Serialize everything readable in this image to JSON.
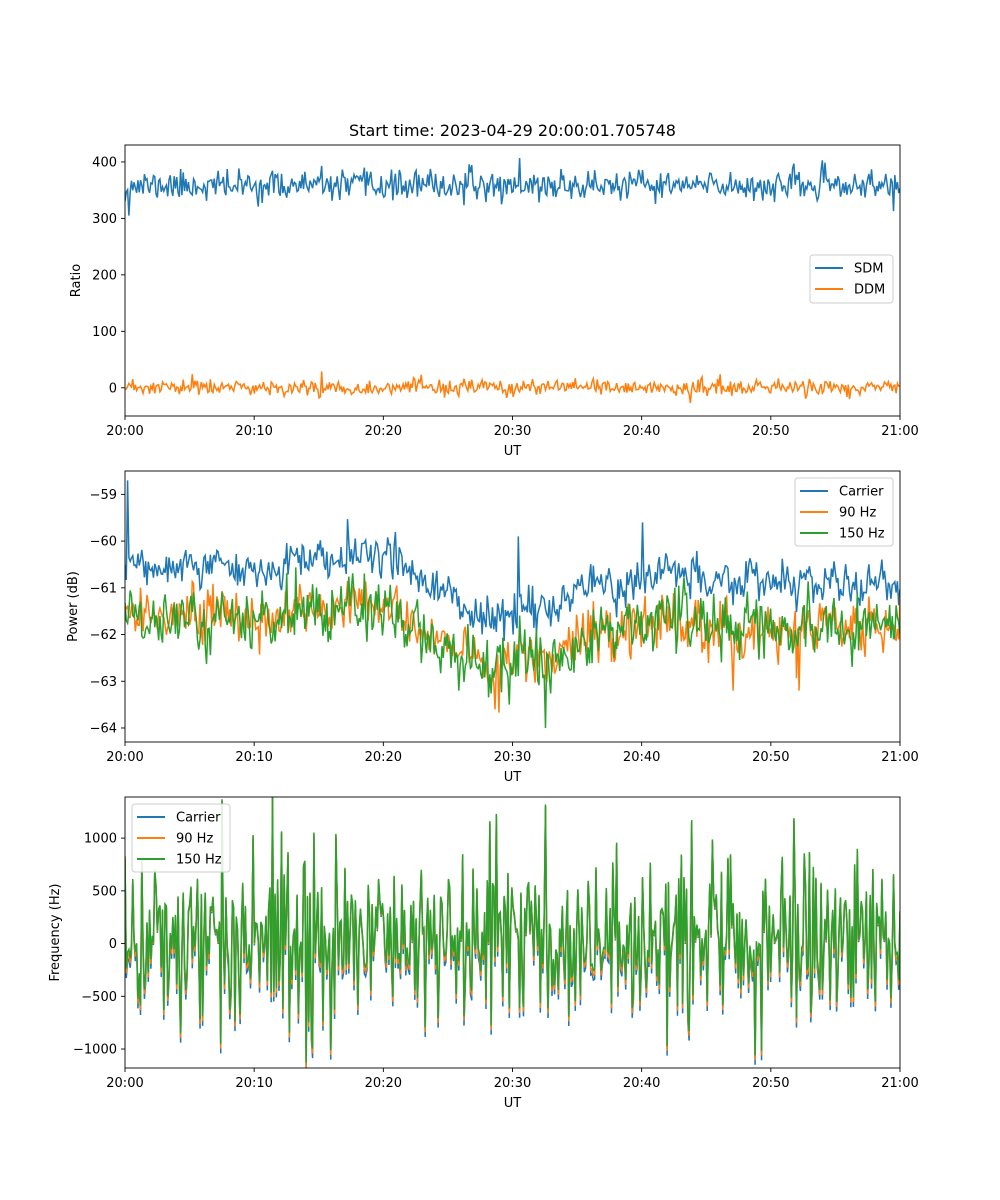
{
  "chart_data": [
    {
      "type": "line",
      "title": "Start time: 2023-04-29 20:00:01.705748",
      "xlabel": "UT",
      "ylabel": "Ratio",
      "x_range": [
        "20:00",
        "21:00"
      ],
      "xticks": [
        "20:00",
        "20:10",
        "20:20",
        "20:30",
        "20:40",
        "20:50",
        "21:00"
      ],
      "ylim": [
        -50,
        430
      ],
      "yticks": [
        0,
        100,
        200,
        300,
        400
      ],
      "ytick_labels": [
        "0",
        "100",
        "200",
        "300",
        "400"
      ],
      "legend_position": "center-right",
      "grid": false,
      "series": [
        {
          "name": "SDM",
          "color": "#1f77b4",
          "mean": 358,
          "noise": 13,
          "seed": 11,
          "start": 320,
          "events": [
            [
              0.005,
              305
            ],
            [
              0.51,
              407
            ],
            [
              0.0,
              330
            ]
          ]
        },
        {
          "name": "DDM",
          "color": "#ff7f0e",
          "mean": 0,
          "noise": 7,
          "seed": 23,
          "start": -3,
          "events": [
            [
              0.253,
              29
            ],
            [
              0.087,
              24
            ],
            [
              0.73,
              -27
            ]
          ]
        }
      ]
    },
    {
      "type": "line",
      "title": "",
      "xlabel": "UT",
      "ylabel": "Power (dB)",
      "x_range": [
        "20:00",
        "21:00"
      ],
      "xticks": [
        "20:00",
        "20:10",
        "20:20",
        "20:30",
        "20:40",
        "20:50",
        "21:00"
      ],
      "ylim": [
        -64.3,
        -58.5
      ],
      "yticks": [
        -64,
        -63,
        -62,
        -61,
        -60,
        -59
      ],
      "ytick_labels": [
        "−64",
        "−63",
        "−62",
        "−61",
        "−60",
        "−59"
      ],
      "legend_position": "top-right",
      "grid": false,
      "series": [
        {
          "name": "Carrier",
          "color": "#1f77b4",
          "noise": 0.18,
          "seed": 5,
          "baseline": [
            [
              0,
              -60.6
            ],
            [
              0.1,
              -60.6
            ],
            [
              0.2,
              -60.5
            ],
            [
              0.3,
              -60.3
            ],
            [
              0.35,
              -60.4
            ],
            [
              0.4,
              -61.0
            ],
            [
              0.45,
              -61.5
            ],
            [
              0.5,
              -61.6
            ],
            [
              0.55,
              -61.4
            ],
            [
              0.6,
              -61.0
            ],
            [
              0.65,
              -60.8
            ],
            [
              0.7,
              -60.7
            ],
            [
              0.75,
              -60.9
            ],
            [
              0.8,
              -60.8
            ],
            [
              0.9,
              -60.9
            ],
            [
              1.0,
              -61.0
            ]
          ],
          "events": [
            [
              0.003,
              -58.7
            ],
            [
              0.508,
              -59.9
            ],
            [
              0.668,
              -59.6
            ],
            [
              0.5,
              -62.0
            ]
          ]
        },
        {
          "name": "90 Hz",
          "color": "#ff7f0e",
          "noise": 0.28,
          "seed": 17,
          "baseline": [
            [
              0,
              -61.6
            ],
            [
              0.1,
              -61.6
            ],
            [
              0.2,
              -61.6
            ],
            [
              0.3,
              -61.4
            ],
            [
              0.35,
              -61.5
            ],
            [
              0.4,
              -62.2
            ],
            [
              0.45,
              -62.5
            ],
            [
              0.5,
              -62.7
            ],
            [
              0.55,
              -62.5
            ],
            [
              0.6,
              -62.1
            ],
            [
              0.65,
              -61.8
            ],
            [
              0.7,
              -61.7
            ],
            [
              0.75,
              -61.9
            ],
            [
              0.8,
              -61.9
            ],
            [
              0.9,
              -61.8
            ],
            [
              1.0,
              -61.9
            ]
          ],
          "events": [
            [
              0.478,
              -63.6
            ],
            [
              0.785,
              -63.2
            ],
            [
              0.87,
              -63.2
            ]
          ]
        },
        {
          "name": "150 Hz",
          "color": "#2ca02c",
          "noise": 0.3,
          "seed": 29,
          "baseline": [
            [
              0,
              -61.7
            ],
            [
              0.1,
              -61.7
            ],
            [
              0.2,
              -61.6
            ],
            [
              0.3,
              -61.5
            ],
            [
              0.35,
              -61.6
            ],
            [
              0.4,
              -62.2
            ],
            [
              0.45,
              -62.5
            ],
            [
              0.5,
              -62.6
            ],
            [
              0.55,
              -62.5
            ],
            [
              0.6,
              -62.1
            ],
            [
              0.65,
              -61.7
            ],
            [
              0.7,
              -61.6
            ],
            [
              0.75,
              -61.8
            ],
            [
              0.8,
              -61.8
            ],
            [
              0.9,
              -61.9
            ],
            [
              1.0,
              -61.8
            ]
          ],
          "events": [
            [
              0.542,
              -64.0
            ],
            [
              0.505,
              -62.9
            ],
            [
              0.495,
              -63.5
            ],
            [
              0.43,
              -63.2
            ]
          ]
        }
      ]
    },
    {
      "type": "line",
      "title": "",
      "xlabel": "UT",
      "ylabel": "Frequency (Hz)",
      "x_range": [
        "20:00",
        "21:00"
      ],
      "xticks": [
        "20:00",
        "20:10",
        "20:20",
        "20:30",
        "20:40",
        "20:50",
        "21:00"
      ],
      "ylim": [
        -1180,
        1390
      ],
      "yticks": [
        -1000,
        -500,
        0,
        500,
        1000
      ],
      "ytick_labels": [
        "−1000",
        "−500",
        "0",
        "500",
        "1000"
      ],
      "legend_position": "top-left",
      "grid": false,
      "series": [
        {
          "name": "Carrier",
          "color": "#1f77b4",
          "offset": -60
        },
        {
          "name": "90 Hz",
          "color": "#ff7f0e",
          "offset": -30
        },
        {
          "name": "150 Hz",
          "color": "#2ca02c",
          "offset": 0,
          "noise": 380,
          "seed": 41,
          "events": [
            [
              0.543,
              1320
            ],
            [
              0.479,
              1230
            ],
            [
              0.813,
              -1060
            ],
            [
              0.272,
              1040
            ],
            [
              0.165,
              1030
            ],
            [
              0.863,
              1190
            ],
            [
              0.0,
              830
            ],
            [
              0.265,
              -1010
            ],
            [
              0.072,
              -850
            ]
          ]
        }
      ]
    }
  ]
}
